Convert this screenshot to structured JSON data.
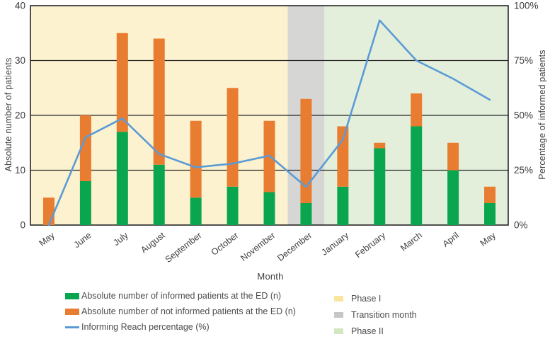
{
  "chart_data": {
    "type": "combo_bar_line",
    "title": "",
    "categories": [
      "May",
      "June",
      "July",
      "August",
      "September",
      "October",
      "November",
      "December",
      "January",
      "February",
      "March",
      "April",
      "May"
    ],
    "series": [
      {
        "name": "Absolute number of informed patients at the ED (n)",
        "type": "stacked_bar",
        "color": "#0aa64f",
        "axis": "left",
        "values": [
          0,
          8,
          17,
          11,
          5,
          7,
          6,
          4,
          7,
          14,
          18,
          10,
          4
        ]
      },
      {
        "name": "Absolute number of not informed patients at the ED (n)",
        "type": "stacked_bar",
        "color": "#e87d31",
        "axis": "left",
        "values": [
          5,
          12,
          18,
          23,
          14,
          18,
          13,
          19,
          11,
          1,
          6,
          5,
          3
        ]
      },
      {
        "name": "Informing Reach percentage (%)",
        "type": "line",
        "color": "#5b9bd5",
        "axis": "right",
        "values": [
          0,
          40,
          48.6,
          32.4,
          26.3,
          28,
          31.6,
          17.4,
          38.9,
          93.3,
          75,
          66.7,
          57.1
        ]
      }
    ],
    "stacked_totals": [
      5,
      20,
      35,
      34,
      19,
      25,
      19,
      23,
      18,
      15,
      24,
      15,
      7
    ],
    "axis_left": {
      "label": "Absolute number of patients",
      "ticks": [
        "0",
        "10",
        "20",
        "30",
        "40"
      ],
      "range": [
        0,
        40
      ]
    },
    "axis_right": {
      "label": "Percentage of informed patients",
      "ticks": [
        "0%",
        "25%",
        "50%",
        "75%",
        "100%"
      ],
      "range": [
        0,
        100
      ]
    },
    "axis_x": {
      "label": "Month"
    },
    "zones": [
      {
        "label": "Phase I",
        "from_category_index": 0,
        "to_category_index": 6,
        "fill": "#fcf2cf",
        "legend_swatch": "#fae49e"
      },
      {
        "label": "Transition month",
        "from_category_index": 7,
        "to_category_index": 7,
        "fill": "#d6d6d4",
        "legend_swatch": "#c6c6c6"
      },
      {
        "label": "Phase II",
        "from_category_index": 8,
        "to_category_index": 12,
        "fill": "#e4efdb",
        "legend_swatch": "#d2e7c0"
      }
    ],
    "grid": "horizontal",
    "legend_position": "bottom",
    "colors": {
      "gridline": "#262626",
      "tick_text": "#3d3d3d",
      "axis_title_text": "#3f3f3f",
      "legend_text": "#4d4d4d"
    }
  }
}
